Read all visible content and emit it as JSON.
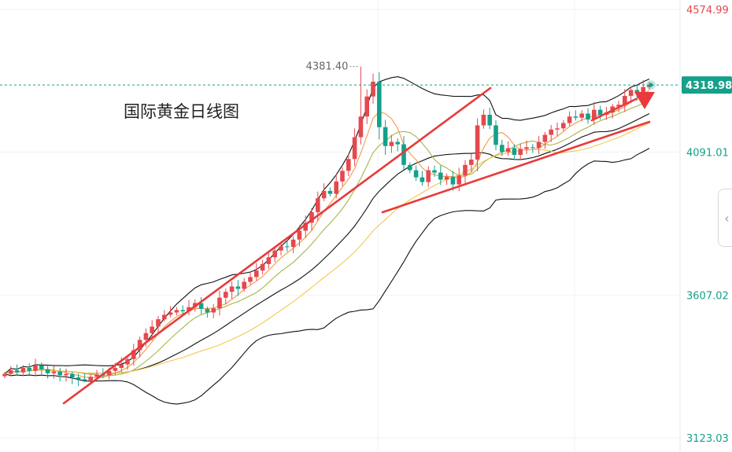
{
  "chart_data": {
    "type": "candlestick",
    "title": "国际黄金日线图",
    "xlabel": "",
    "ylabel": "",
    "ylim": [
      3123.03,
      4574.99
    ],
    "y_ticks": [
      {
        "value": 4574.99,
        "label": "4574.99",
        "color": "#e5484d"
      },
      {
        "value": 4091.01,
        "label": "4091.01",
        "color": "#15a08a"
      },
      {
        "value": 3607.02,
        "label": "3607.02",
        "color": "#15a08a"
      },
      {
        "value": 3123.03,
        "label": "3123.03",
        "color": "#15a08a"
      }
    ],
    "last_price": {
      "value": 4318.98,
      "label": "4318.98",
      "color": "#15a08a"
    },
    "peak_annotation": {
      "value": 4381.4,
      "label": "4381.40",
      "index": 58
    },
    "colors": {
      "up": "#e5484d",
      "down": "#15a08a",
      "ma_fast": "#f2994a",
      "ma_mid": "#a8b54a",
      "ma_slow": "#f2c94c",
      "bands": "#111111",
      "trend": "#e83a3a"
    },
    "closes": [
      3340,
      3352,
      3345,
      3360,
      3350,
      3368,
      3355,
      3342,
      3348,
      3335,
      3340,
      3328,
      3322,
      3318,
      3330,
      3338,
      3335,
      3350,
      3360,
      3372,
      3390,
      3420,
      3455,
      3478,
      3500,
      3525,
      3540,
      3548,
      3556,
      3552,
      3566,
      3580,
      3560,
      3548,
      3562,
      3598,
      3618,
      3636,
      3628,
      3652,
      3668,
      3690,
      3712,
      3735,
      3758,
      3772,
      3770,
      3795,
      3825,
      3852,
      3888,
      3935,
      3960,
      3950,
      3992,
      4028,
      4068,
      4142,
      4212,
      4280,
      4330,
      4176,
      4112,
      4126,
      4118,
      4048,
      4030,
      4006,
      3990,
      4030,
      4022,
      3998,
      4008,
      3982,
      4012,
      4048,
      4066,
      4182,
      4218,
      4182,
      4116,
      4092,
      4105,
      4082,
      4102,
      4108,
      4106,
      4126,
      4150,
      4168,
      4172,
      4190,
      4212,
      4208,
      4222,
      4202,
      4235,
      4218,
      4226,
      4246,
      4252,
      4282,
      4302,
      4290,
      4312,
      4318.98
    ]
  }
}
